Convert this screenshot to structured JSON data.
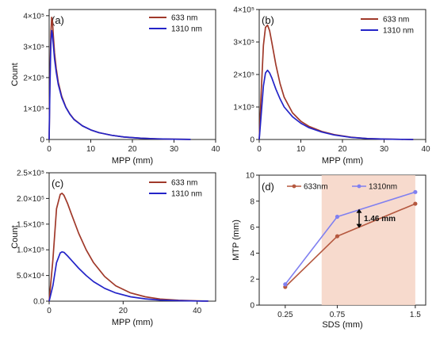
{
  "colors": {
    "s633": "#A0392A",
    "s1310": "#2424C8",
    "band": "#F6D4C4",
    "series_d_633": "#B5583F",
    "series_d_1310": "#8080F0",
    "axis": "#222222"
  },
  "chart_data": [
    {
      "panel": "(a)",
      "type": "line",
      "xlabel": "MPP (mm)",
      "ylabel": "Count",
      "xlim": [
        0,
        40
      ],
      "ylim": [
        0,
        420000
      ],
      "xticks": [
        "0",
        "10",
        "20",
        "30",
        "40"
      ],
      "yticks": [
        {
          "value": 0,
          "label": "0"
        },
        {
          "value": 100000,
          "label": "1×10⁵"
        },
        {
          "value": 200000,
          "label": "2×10⁵"
        },
        {
          "value": 300000,
          "label": "3×10⁵"
        },
        {
          "value": 400000,
          "label": "4×10⁵"
        }
      ],
      "legend_position": "top-right",
      "series": [
        {
          "name": "633 nm",
          "x": [
            0,
            0.2,
            0.4,
            0.6,
            0.8,
            1.0,
            1.3,
            1.7,
            2.2,
            3,
            4,
            5,
            6,
            8,
            10,
            12,
            15,
            18,
            22,
            26,
            30,
            34
          ],
          "y": [
            0,
            200000,
            340000,
            395000,
            380000,
            335000,
            280000,
            230000,
            185000,
            140000,
            105000,
            82000,
            65000,
            44000,
            31000,
            22000,
            13500,
            8000,
            4000,
            2000,
            900,
            300
          ]
        },
        {
          "name": "1310 nm",
          "x": [
            0,
            0.2,
            0.4,
            0.6,
            0.8,
            1.0,
            1.3,
            1.7,
            2.2,
            3,
            4,
            5,
            6,
            8,
            10,
            12,
            15,
            18,
            22,
            26,
            30,
            34
          ],
          "y": [
            0,
            170000,
            305000,
            352000,
            340000,
            305000,
            260000,
            218000,
            178000,
            136000,
            104000,
            81000,
            64000,
            44000,
            31000,
            22000,
            13500,
            8000,
            4000,
            2000,
            900,
            300
          ]
        }
      ]
    },
    {
      "panel": "(b)",
      "type": "line",
      "xlabel": "MPP (mm)",
      "ylabel": "",
      "xlim": [
        0,
        40
      ],
      "ylim": [
        0,
        400000
      ],
      "xticks": [
        "0",
        "10",
        "20",
        "30",
        "40"
      ],
      "yticks": [
        {
          "value": 0,
          "label": "0"
        },
        {
          "value": 100000,
          "label": "1×10⁵"
        },
        {
          "value": 200000,
          "label": "2×10⁵"
        },
        {
          "value": 300000,
          "label": "3×10⁵"
        },
        {
          "value": 400000,
          "label": "4×10⁵"
        }
      ],
      "legend_position": "top-right",
      "series": [
        {
          "name": "633 nm",
          "x": [
            0,
            0.5,
            1,
            1.5,
            2,
            2.5,
            3,
            4,
            5,
            6,
            8,
            10,
            12,
            15,
            18,
            22,
            26,
            30,
            34,
            37
          ],
          "y": [
            0,
            150000,
            290000,
            345000,
            352000,
            335000,
            300000,
            230000,
            172000,
            130000,
            82000,
            56000,
            40000,
            25000,
            15000,
            7000,
            3000,
            1200,
            400,
            100
          ]
        },
        {
          "name": "1310 nm",
          "x": [
            0,
            0.5,
            1,
            1.5,
            2,
            2.5,
            3,
            4,
            5,
            6,
            8,
            10,
            12,
            15,
            18,
            22,
            26,
            30,
            34,
            37
          ],
          "y": [
            0,
            80000,
            165000,
            205000,
            213000,
            205000,
            190000,
            155000,
            125000,
            100000,
            70000,
            50000,
            36000,
            23000,
            14000,
            6500,
            3000,
            1200,
            400,
            100
          ]
        }
      ]
    },
    {
      "panel": "(c)",
      "type": "line",
      "xlabel": "MPP (mm)",
      "ylabel": "Count",
      "xlim": [
        0,
        45
      ],
      "ylim": [
        0,
        250000
      ],
      "xticks": [
        {
          "value": 0,
          "label": "0"
        },
        {
          "value": 20,
          "label": "20"
        },
        {
          "value": 40,
          "label": "40"
        }
      ],
      "yticks": [
        {
          "value": 0,
          "label": "0.0"
        },
        {
          "value": 50000,
          "label": "5.0×10⁴"
        },
        {
          "value": 100000,
          "label": "1.0×10⁵"
        },
        {
          "value": 150000,
          "label": "1.5×10⁵"
        },
        {
          "value": 200000,
          "label": "2.0×10⁵"
        },
        {
          "value": 250000,
          "label": "2.5×10⁵"
        }
      ],
      "legend_position": "top-right",
      "series": [
        {
          "name": "633 nm",
          "x": [
            0,
            1,
            2,
            3,
            3.5,
            4,
            5,
            6,
            8,
            10,
            12,
            15,
            18,
            22,
            26,
            30,
            35,
            40,
            43
          ],
          "y": [
            0,
            80000,
            180000,
            208000,
            210000,
            206000,
            190000,
            170000,
            132000,
            100000,
            75000,
            48000,
            30000,
            16000,
            8500,
            4200,
            1800,
            600,
            200
          ]
        },
        {
          "name": "1310 nm",
          "x": [
            0,
            1,
            2,
            3,
            3.5,
            4,
            5,
            6,
            8,
            10,
            12,
            15,
            18,
            22,
            26,
            30,
            35,
            40,
            43
          ],
          "y": [
            0,
            30000,
            75000,
            94000,
            96000,
            95000,
            88000,
            80000,
            64000,
            50000,
            38000,
            25000,
            16000,
            8500,
            4500,
            2200,
            900,
            300,
            100
          ]
        }
      ]
    },
    {
      "panel": "(d)",
      "type": "line",
      "xlabel": "SDS (mm)",
      "ylabel": "MTP (mm)",
      "xlim": [
        0,
        1.6
      ],
      "ylim": [
        0,
        10
      ],
      "xticks": [
        {
          "value": 0.25,
          "label": "0.25"
        },
        {
          "value": 0.75,
          "label": "0.75"
        },
        {
          "value": 1.5,
          "label": "1.5"
        }
      ],
      "yticks": [
        {
          "value": 0,
          "label": "0"
        },
        {
          "value": 2,
          "label": "2"
        },
        {
          "value": 4,
          "label": "4"
        },
        {
          "value": 6,
          "label": "6"
        },
        {
          "value": 8,
          "label": "8"
        },
        {
          "value": 10,
          "label": "10"
        }
      ],
      "shaded_x_range": [
        0.6,
        1.5
      ],
      "legend_position": "top",
      "annotation": {
        "text": "1.46 mm",
        "x": 0.96,
        "y_top": 7.4,
        "y_bottom": 5.94
      },
      "series": [
        {
          "name": "633nm",
          "x": [
            0.25,
            0.75,
            1.5
          ],
          "y": [
            1.4,
            5.3,
            7.8
          ]
        },
        {
          "name": "1310nm",
          "x": [
            0.25,
            0.75,
            1.5
          ],
          "y": [
            1.6,
            6.8,
            8.7
          ]
        }
      ]
    }
  ]
}
